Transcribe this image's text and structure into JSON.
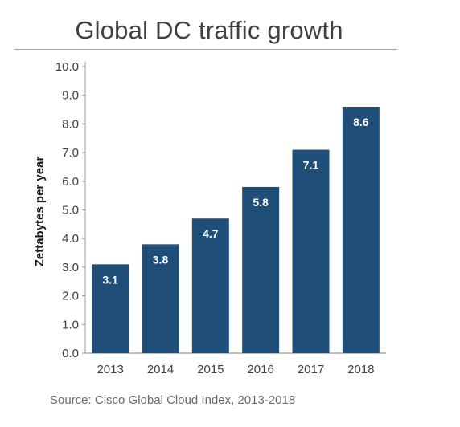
{
  "chart_data": {
    "type": "bar",
    "title": "Global DC traffic growth",
    "xlabel": "",
    "ylabel": "Zettabytes per year",
    "categories": [
      "2013",
      "2014",
      "2015",
      "2016",
      "2017",
      "2018"
    ],
    "values": [
      3.1,
      3.8,
      4.7,
      5.8,
      7.1,
      8.6
    ],
    "data_labels": [
      "3.1",
      "3.8",
      "4.7",
      "5.8",
      "7.1",
      "8.6"
    ],
    "ylim": [
      0,
      10
    ],
    "yticks": [
      "0.0",
      "1.0",
      "2.0",
      "3.0",
      "4.0",
      "5.0",
      "6.0",
      "7.0",
      "8.0",
      "9.0",
      "10.0"
    ],
    "grid": false,
    "legend": "none",
    "bar_color": "#1f4e79",
    "source": "Source: Cisco Global Cloud Index, 2013-2018"
  }
}
